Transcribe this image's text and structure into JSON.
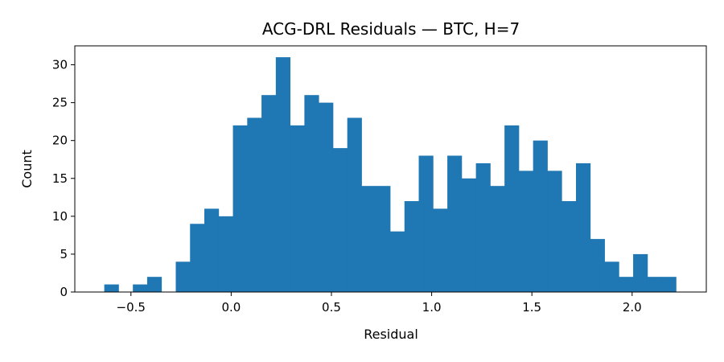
{
  "chart_data": {
    "type": "histogram",
    "title": "ACG-DRL Residuals — BTC, H=7",
    "xlabel": "Residual",
    "ylabel": "Count",
    "xlim": [
      -0.78,
      2.37
    ],
    "ylim": [
      0,
      32.5
    ],
    "x_ticks": [
      -0.5,
      0.0,
      0.5,
      1.0,
      1.5,
      2.0
    ],
    "x_tick_labels": [
      "−0.5",
      "0.0",
      "0.5",
      "1.0",
      "1.5",
      "2.0"
    ],
    "y_ticks": [
      0,
      5,
      10,
      15,
      20,
      25,
      30
    ],
    "y_tick_labels": [
      "0",
      "5",
      "10",
      "15",
      "20",
      "25",
      "30"
    ],
    "bin_start": -0.633,
    "bin_width": 0.0713,
    "counts": [
      1,
      0,
      1,
      2,
      0,
      4,
      9,
      11,
      10,
      22,
      23,
      26,
      31,
      22,
      26,
      25,
      19,
      23,
      14,
      14,
      8,
      12,
      18,
      11,
      18,
      15,
      17,
      14,
      22,
      16,
      20,
      16,
      12,
      17,
      7,
      4,
      2,
      5,
      2,
      2
    ],
    "bar_color": "#1f77b4",
    "grid": false,
    "legend": "none"
  }
}
